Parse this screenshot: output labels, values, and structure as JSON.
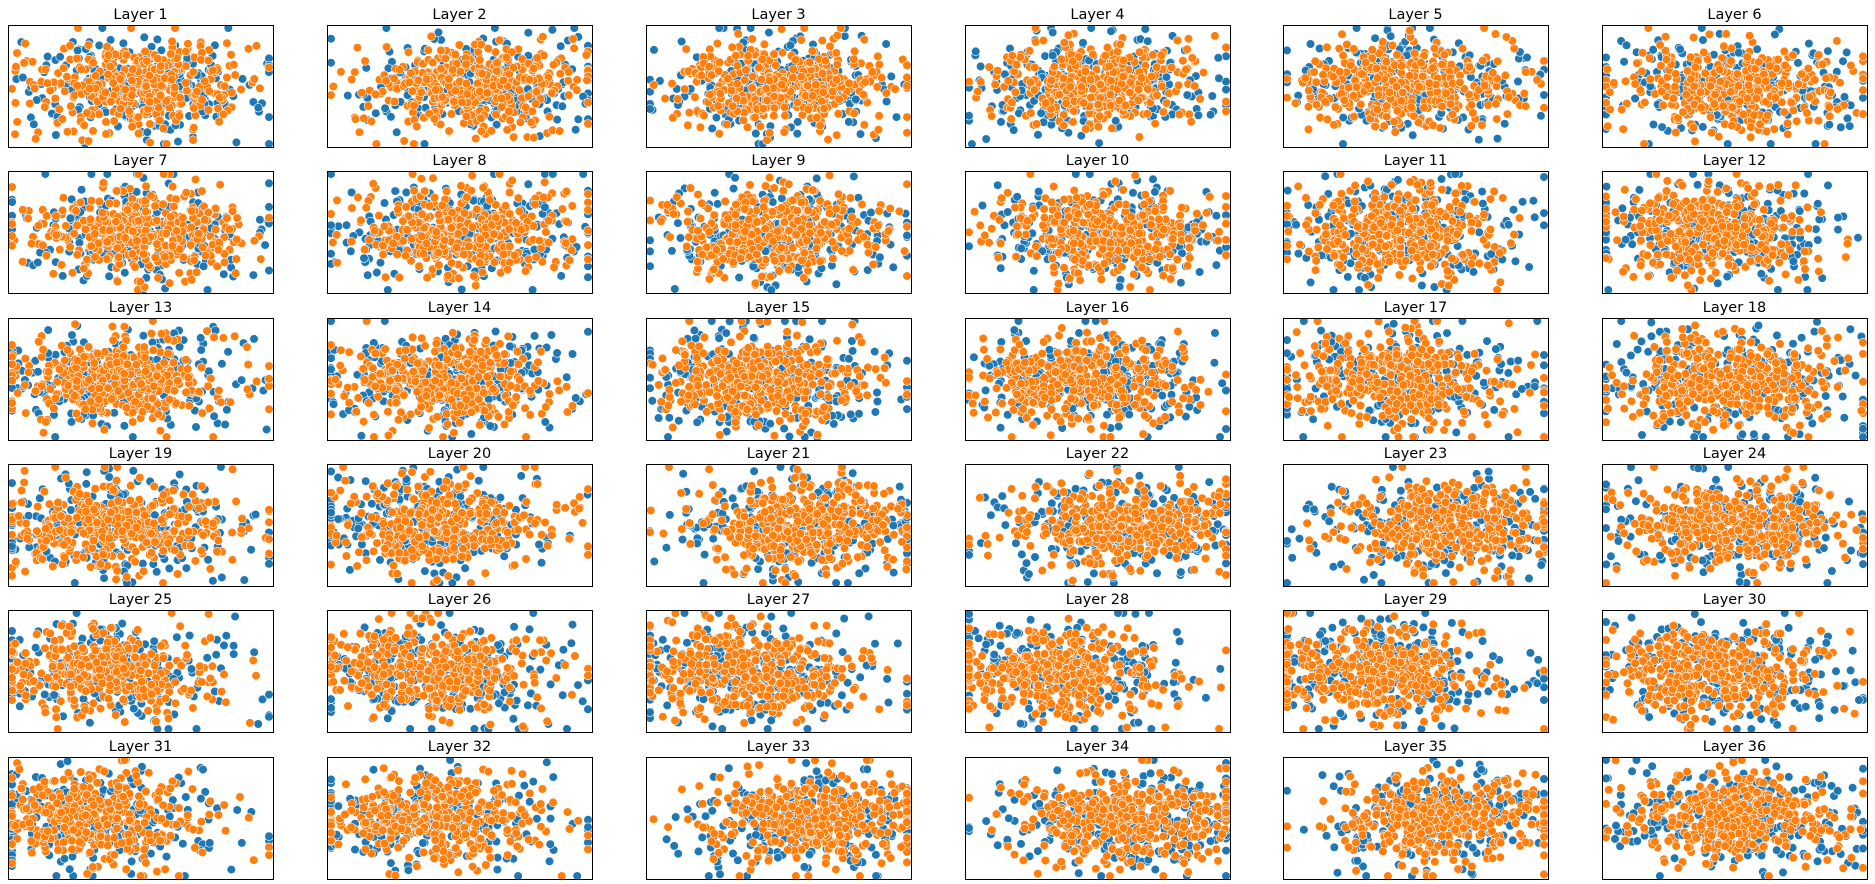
{
  "chart_data": {
    "type": "scatter",
    "layout": {
      "rows": 6,
      "cols": 6
    },
    "axes_visible": false,
    "grid": false,
    "legend": "none",
    "colors": {
      "series_a": "#1f77b4",
      "series_b": "#ff7f0e",
      "marker_edge": "#ffffff"
    },
    "panels": [
      {
        "title": "Layer 1",
        "skew": 0.0,
        "tail": 0
      },
      {
        "title": "Layer 2",
        "skew": 0.05,
        "tail": 0
      },
      {
        "title": "Layer 3",
        "skew": 0.02,
        "tail": 0
      },
      {
        "title": "Layer 4",
        "skew": 0.0,
        "tail": 0
      },
      {
        "title": "Layer 5",
        "skew": -0.02,
        "tail": 0
      },
      {
        "title": "Layer 6",
        "skew": 0.0,
        "tail": 0
      },
      {
        "title": "Layer 7",
        "skew": 0.0,
        "tail": 0
      },
      {
        "title": "Layer 8",
        "skew": 0.0,
        "tail": 0
      },
      {
        "title": "Layer 9",
        "skew": 0.0,
        "tail": 0
      },
      {
        "title": "Layer 10",
        "skew": 0.02,
        "tail": 0
      },
      {
        "title": "Layer 11",
        "skew": -0.05,
        "tail": 0
      },
      {
        "title": "Layer 12",
        "skew": -0.08,
        "tail": 0
      },
      {
        "title": "Layer 13",
        "skew": -0.1,
        "tail": 1
      },
      {
        "title": "Layer 14",
        "skew": -0.08,
        "tail": 1
      },
      {
        "title": "Layer 15",
        "skew": -0.06,
        "tail": 1
      },
      {
        "title": "Layer 16",
        "skew": -0.06,
        "tail": 1
      },
      {
        "title": "Layer 17",
        "skew": -0.06,
        "tail": 1
      },
      {
        "title": "Layer 18",
        "skew": -0.02,
        "tail": 1
      },
      {
        "title": "Layer 19",
        "skew": -0.1,
        "tail": 1
      },
      {
        "title": "Layer 20",
        "skew": -0.1,
        "tail": 1
      },
      {
        "title": "Layer 21",
        "skew": 0.12,
        "tail": -1
      },
      {
        "title": "Layer 22",
        "skew": 0.12,
        "tail": -1
      },
      {
        "title": "Layer 23",
        "skew": 0.12,
        "tail": -1
      },
      {
        "title": "Layer 24",
        "skew": 0.0,
        "tail": 0
      },
      {
        "title": "Layer 25",
        "skew": -0.15,
        "tail": 1
      },
      {
        "title": "Layer 26",
        "skew": -0.12,
        "tail": 1
      },
      {
        "title": "Layer 27",
        "skew": -0.12,
        "tail": 1
      },
      {
        "title": "Layer 28",
        "skew": -0.15,
        "tail": 1
      },
      {
        "title": "Layer 29",
        "skew": -0.15,
        "tail": 1
      },
      {
        "title": "Layer 30",
        "skew": -0.1,
        "tail": 1
      },
      {
        "title": "Layer 31",
        "skew": -0.18,
        "tail": 1
      },
      {
        "title": "Layer 32",
        "skew": -0.12,
        "tail": 1
      },
      {
        "title": "Layer 33",
        "skew": 0.15,
        "tail": -1
      },
      {
        "title": "Layer 34",
        "skew": 0.12,
        "tail": -1
      },
      {
        "title": "Layer 35",
        "skew": 0.12,
        "tail": -1
      },
      {
        "title": "Layer 36",
        "skew": 0.0,
        "tail": 1
      }
    ]
  }
}
